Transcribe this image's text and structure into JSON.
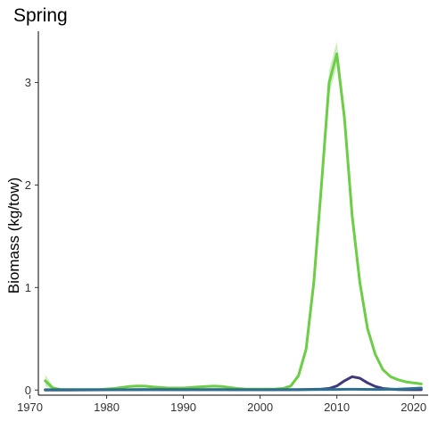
{
  "chart_data": {
    "type": "line",
    "title": "Spring",
    "xlabel": "",
    "ylabel": "Biomass (kg/tow)",
    "xlim": [
      1971.1,
      2021.9
    ],
    "ylim": [
      -0.05,
      3.5
    ],
    "x_ticks": [
      1970,
      1980,
      1990,
      2000,
      2010,
      2020
    ],
    "y_ticks": [
      0,
      1,
      2,
      3
    ],
    "grid": false,
    "legend": "none",
    "series": [
      {
        "color": "#6CCD46",
        "band_color": "#A6E08E",
        "x": [
          1972,
          1973,
          1974,
          1975,
          1976,
          1977,
          1978,
          1979,
          1980,
          1981,
          1982,
          1983,
          1984,
          1985,
          1986,
          1987,
          1988,
          1989,
          1990,
          1991,
          1992,
          1993,
          1994,
          1995,
          1996,
          1997,
          1998,
          1999,
          2000,
          2001,
          2002,
          2003,
          2004,
          2005,
          2006,
          2007,
          2008,
          2009,
          2010,
          2011,
          2012,
          2013,
          2014,
          2015,
          2016,
          2017,
          2018,
          2019,
          2020,
          2021
        ],
        "values": [
          0.09,
          0.02,
          0.005,
          0.005,
          0.005,
          0.005,
          0.005,
          0.005,
          0.01,
          0.015,
          0.025,
          0.035,
          0.04,
          0.038,
          0.03,
          0.025,
          0.02,
          0.02,
          0.02,
          0.025,
          0.03,
          0.035,
          0.038,
          0.035,
          0.025,
          0.015,
          0.01,
          0.008,
          0.008,
          0.008,
          0.01,
          0.015,
          0.04,
          0.14,
          0.4,
          1.05,
          2.0,
          3.0,
          3.28,
          2.65,
          1.7,
          1.05,
          0.6,
          0.35,
          0.2,
          0.13,
          0.1,
          0.08,
          0.07,
          0.06
        ],
        "upper": [
          0.15,
          0.04,
          0.01,
          0.01,
          0.01,
          0.01,
          0.01,
          0.01,
          0.015,
          0.02,
          0.03,
          0.045,
          0.05,
          0.048,
          0.04,
          0.032,
          0.026,
          0.026,
          0.026,
          0.032,
          0.038,
          0.045,
          0.048,
          0.045,
          0.032,
          0.02,
          0.014,
          0.012,
          0.012,
          0.012,
          0.014,
          0.02,
          0.05,
          0.16,
          0.44,
          1.12,
          2.1,
          3.12,
          3.4,
          2.75,
          1.76,
          1.09,
          0.63,
          0.37,
          0.21,
          0.14,
          0.11,
          0.09,
          0.08,
          0.07
        ],
        "lower": [
          0.04,
          0.005,
          0.0,
          0.0,
          0.0,
          0.0,
          0.0,
          0.0,
          0.005,
          0.01,
          0.02,
          0.025,
          0.03,
          0.028,
          0.02,
          0.018,
          0.014,
          0.014,
          0.014,
          0.018,
          0.022,
          0.025,
          0.028,
          0.025,
          0.018,
          0.01,
          0.006,
          0.004,
          0.004,
          0.004,
          0.006,
          0.01,
          0.03,
          0.12,
          0.36,
          0.98,
          1.9,
          2.88,
          3.16,
          2.55,
          1.64,
          1.01,
          0.57,
          0.33,
          0.19,
          0.12,
          0.09,
          0.07,
          0.06,
          0.05
        ]
      },
      {
        "color": "#3E3A7E",
        "x": [
          1972,
          1975,
          1980,
          1985,
          1990,
          1995,
          2000,
          2005,
          2008,
          2009,
          2010,
          2011,
          2012,
          2013,
          2014,
          2015,
          2016,
          2017,
          2018,
          2020,
          2021
        ],
        "values": [
          0.0,
          0.0,
          0.002,
          0.004,
          0.003,
          0.004,
          0.002,
          0.003,
          0.008,
          0.015,
          0.04,
          0.09,
          0.13,
          0.115,
          0.07,
          0.035,
          0.015,
          0.008,
          0.005,
          0.003,
          0.003
        ]
      },
      {
        "color": "#2E6F8E",
        "x": [
          1972,
          1980,
          1990,
          2000,
          2005,
          2010,
          2012,
          2015,
          2018,
          2020,
          2021
        ],
        "values": [
          0.003,
          0.003,
          0.003,
          0.003,
          0.004,
          0.006,
          0.007,
          0.006,
          0.008,
          0.015,
          0.02
        ]
      }
    ]
  }
}
